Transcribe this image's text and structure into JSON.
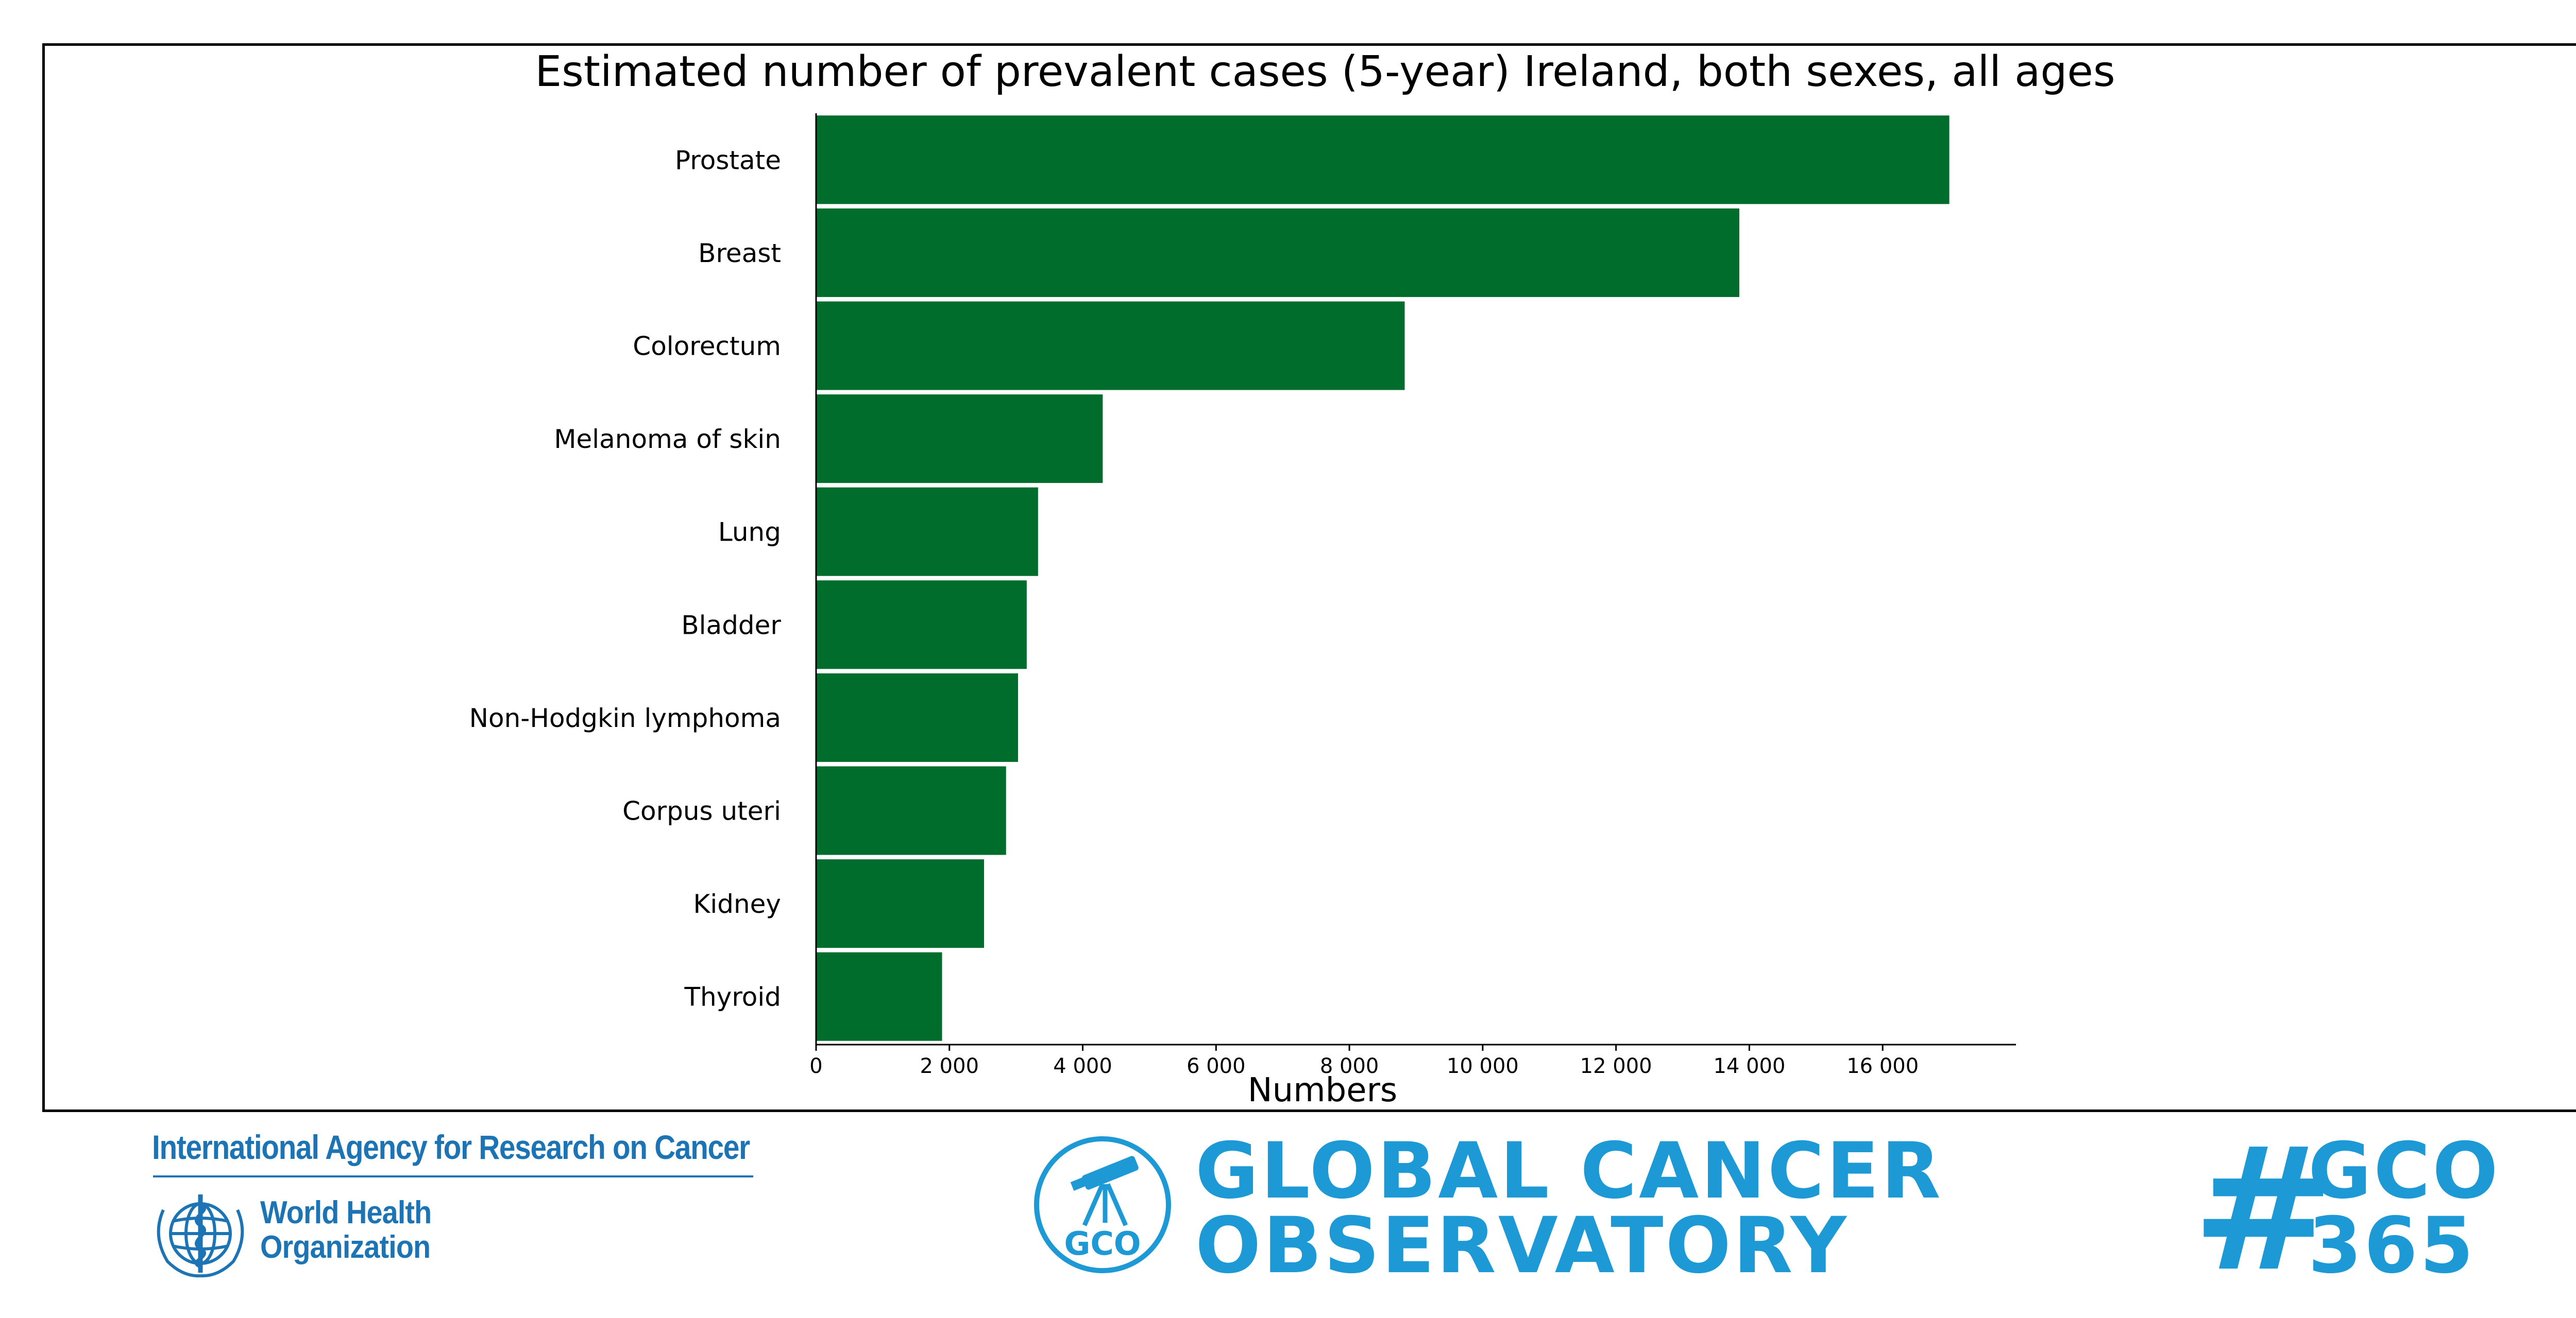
{
  "chart_data": {
    "type": "bar",
    "orientation": "horizontal",
    "title": "Estimated number of prevalent cases (5-year) Ireland, both sexes, all ages",
    "xlabel": "Numbers",
    "ylabel": "",
    "categories": [
      "Prostate",
      "Breast",
      "Colorectum",
      "Melanoma of skin",
      "Lung",
      "Bladder",
      "Non-Hodgkin lymphoma",
      "Corpus uteri",
      "Kidney",
      "Thyroid"
    ],
    "values": [
      17000,
      13850,
      8830,
      4300,
      3330,
      3160,
      3030,
      2850,
      2520,
      1890
    ],
    "xlim": [
      0,
      18000
    ],
    "xticks": [
      0,
      2000,
      4000,
      6000,
      8000,
      10000,
      12000,
      14000,
      16000
    ],
    "xtick_labels": [
      "0",
      "2 000",
      "4 000",
      "6 000",
      "8 000",
      "10 000",
      "12 000",
      "14 000",
      "16 000"
    ],
    "bar_color": "#006d2c",
    "grid": false,
    "legend": "none"
  },
  "footer": {
    "iarc_name": "International Agency for Research on Cancer",
    "who_line1": "World Health",
    "who_line2": "Organization",
    "gco_badge": "GCO",
    "gco_line1": "GLOBAL CANCER",
    "gco_line2": "OBSERVATORY",
    "hashtag": "#",
    "hashtag_line1": "GCO",
    "hashtag_line2": "365",
    "brand_color": "#1d9ad6",
    "iarc_color": "#1d74b4"
  }
}
